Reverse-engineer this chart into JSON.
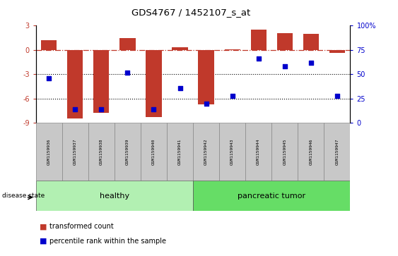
{
  "title": "GDS4767 / 1452107_s_at",
  "samples": [
    "GSM1159936",
    "GSM1159937",
    "GSM1159938",
    "GSM1159939",
    "GSM1159940",
    "GSM1159941",
    "GSM1159942",
    "GSM1159943",
    "GSM1159944",
    "GSM1159945",
    "GSM1159946",
    "GSM1159947"
  ],
  "transformed_count": [
    1.2,
    -8.5,
    -7.8,
    1.5,
    -8.3,
    0.3,
    -6.7,
    0.1,
    2.5,
    2.1,
    2.0,
    -0.4
  ],
  "percentile_rank": [
    46,
    14,
    14,
    52,
    14,
    36,
    20,
    28,
    66,
    58,
    62,
    28
  ],
  "groups": [
    "healthy",
    "healthy",
    "healthy",
    "healthy",
    "healthy",
    "healthy",
    "pancreatic tumor",
    "pancreatic tumor",
    "pancreatic tumor",
    "pancreatic tumor",
    "pancreatic tumor",
    "pancreatic tumor"
  ],
  "group_colors": {
    "healthy": "#b2f0b2",
    "pancreatic tumor": "#66dd66"
  },
  "bar_color": "#C0392B",
  "dot_color": "#0000CC",
  "ylim_left": [
    -9,
    3
  ],
  "ylim_right": [
    0,
    100
  ],
  "yticks_left": [
    -9,
    -6,
    -3,
    0,
    3
  ],
  "yticks_right": [
    0,
    25,
    50,
    75,
    100
  ],
  "dotted_lines": [
    -3,
    -6
  ],
  "tick_area_color": "#c8c8c8",
  "n_samples": 12,
  "n_healthy": 6,
  "n_tumor": 6
}
